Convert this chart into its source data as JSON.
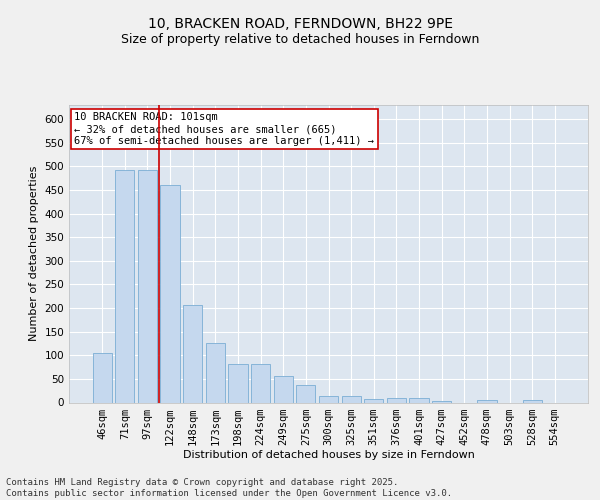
{
  "title_line1": "10, BRACKEN ROAD, FERNDOWN, BH22 9PE",
  "title_line2": "Size of property relative to detached houses in Ferndown",
  "xlabel": "Distribution of detached houses by size in Ferndown",
  "ylabel": "Number of detached properties",
  "categories": [
    "46sqm",
    "71sqm",
    "97sqm",
    "122sqm",
    "148sqm",
    "173sqm",
    "198sqm",
    "224sqm",
    "249sqm",
    "275sqm",
    "300sqm",
    "325sqm",
    "351sqm",
    "376sqm",
    "401sqm",
    "427sqm",
    "452sqm",
    "478sqm",
    "503sqm",
    "528sqm",
    "554sqm"
  ],
  "values": [
    105,
    493,
    493,
    460,
    207,
    125,
    81,
    81,
    57,
    38,
    13,
    13,
    8,
    10,
    10,
    3,
    0,
    5,
    0,
    5,
    0
  ],
  "bar_color": "#c5d8ee",
  "bar_edge_color": "#7badd4",
  "vline_x": 2.5,
  "vline_color": "#cc0000",
  "annotation_text": "10 BRACKEN ROAD: 101sqm\n← 32% of detached houses are smaller (665)\n67% of semi-detached houses are larger (1,411) →",
  "annotation_box_color": "#ffffff",
  "annotation_box_edge": "#cc0000",
  "ylim": [
    0,
    630
  ],
  "yticks": [
    0,
    50,
    100,
    150,
    200,
    250,
    300,
    350,
    400,
    450,
    500,
    550,
    600
  ],
  "background_color": "#dde6f0",
  "grid_color": "#ffffff",
  "footer_text": "Contains HM Land Registry data © Crown copyright and database right 2025.\nContains public sector information licensed under the Open Government Licence v3.0.",
  "title_fontsize": 10,
  "subtitle_fontsize": 9,
  "axis_label_fontsize": 8,
  "tick_fontsize": 7.5,
  "annotation_fontsize": 7.5,
  "footer_fontsize": 6.5
}
